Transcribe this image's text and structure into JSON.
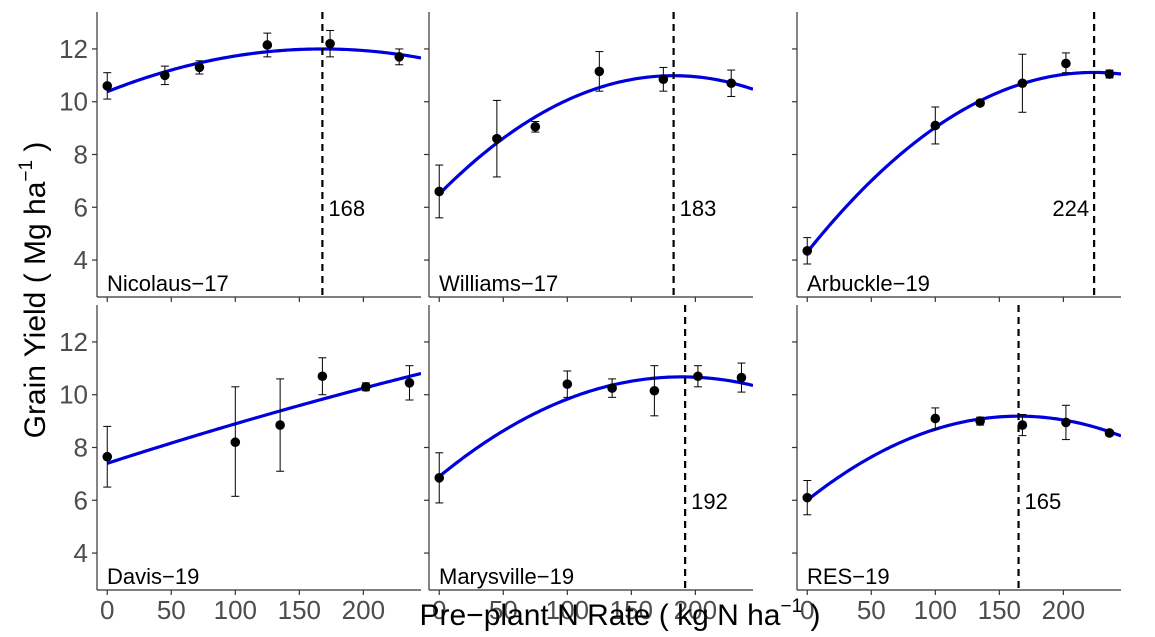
{
  "chart_data": {
    "type": "scatter",
    "layout": "facet-grid 2x3",
    "xlabel": {
      "main": "Pre−plant N Rate ( kg N ha",
      "sup": "−1",
      "tail": " )"
    },
    "ylabel": {
      "main": "Grain Yield ( Mg ha",
      "sup": "−1",
      "tail": " )"
    },
    "xlim": [
      -8,
      245
    ],
    "ylim": [
      2.6,
      13.4
    ],
    "x_ticks": [
      0,
      50,
      100,
      150,
      200
    ],
    "y_ticks": [
      4,
      6,
      8,
      10,
      12
    ],
    "grid": false,
    "colors": {
      "fit": "#0000dd",
      "points": "#000000",
      "optimum_line": "#000000",
      "axis": "#333333"
    },
    "panels": [
      {
        "name": "Nicolaus−17",
        "optimum_label": "168",
        "optimum_x": 168,
        "points": [
          {
            "x": 0,
            "y": 10.6,
            "lo": 10.1,
            "hi": 11.1
          },
          {
            "x": 45,
            "y": 11.0,
            "lo": 10.65,
            "hi": 11.35
          },
          {
            "x": 72,
            "y": 11.3,
            "lo": 11.05,
            "hi": 11.55
          },
          {
            "x": 125,
            "y": 12.15,
            "lo": 11.7,
            "hi": 12.6
          },
          {
            "x": 174,
            "y": 12.2,
            "lo": 11.7,
            "hi": 12.7
          },
          {
            "x": 228,
            "y": 11.7,
            "lo": 11.4,
            "hi": 12.0
          }
        ],
        "fit": {
          "a": 10.38,
          "b": 0.01928,
          "c": -5.74e-05
        }
      },
      {
        "name": "Williams−17",
        "optimum_label": "183",
        "optimum_x": 183,
        "points": [
          {
            "x": 0,
            "y": 6.6,
            "lo": 5.6,
            "hi": 7.6
          },
          {
            "x": 45,
            "y": 8.6,
            "lo": 7.15,
            "hi": 10.05
          },
          {
            "x": 75,
            "y": 9.05,
            "lo": 8.85,
            "hi": 9.25
          },
          {
            "x": 125,
            "y": 11.15,
            "lo": 10.4,
            "hi": 11.9
          },
          {
            "x": 175,
            "y": 10.85,
            "lo": 10.4,
            "hi": 11.3
          },
          {
            "x": 228,
            "y": 10.7,
            "lo": 10.2,
            "hi": 11.2
          }
        ],
        "fit": {
          "a": 6.5,
          "b": 0.04902,
          "c": -0.0001339
        }
      },
      {
        "name": "Arbuckle−19",
        "optimum_label": "224",
        "optimum_x": 224,
        "points": [
          {
            "x": 0,
            "y": 4.35,
            "lo": 3.85,
            "hi": 4.85
          },
          {
            "x": 100,
            "y": 9.1,
            "lo": 8.4,
            "hi": 9.8
          },
          {
            "x": 135,
            "y": 9.95,
            "lo": 9.85,
            "hi": 10.05
          },
          {
            "x": 168,
            "y": 10.7,
            "lo": 9.6,
            "hi": 11.8
          },
          {
            "x": 202,
            "y": 11.45,
            "lo": 11.1,
            "hi": 11.85
          },
          {
            "x": 236,
            "y": 11.05,
            "lo": 10.9,
            "hi": 11.2
          }
        ],
        "fit": {
          "a": 4.3,
          "b": 0.06082,
          "c": -0.0001358
        }
      },
      {
        "name": "Davis−19",
        "optimum_label": "",
        "optimum_x": null,
        "points": [
          {
            "x": 0,
            "y": 7.65,
            "lo": 6.5,
            "hi": 8.8
          },
          {
            "x": 100,
            "y": 8.2,
            "lo": 6.15,
            "hi": 10.3
          },
          {
            "x": 135,
            "y": 8.85,
            "lo": 7.1,
            "hi": 10.6
          },
          {
            "x": 168,
            "y": 10.7,
            "lo": 10.0,
            "hi": 11.4
          },
          {
            "x": 202,
            "y": 10.3,
            "lo": 10.15,
            "hi": 10.45
          },
          {
            "x": 236,
            "y": 10.45,
            "lo": 9.8,
            "hi": 11.1
          }
        ],
        "fit": {
          "a": 7.4,
          "b": 0.01571,
          "c": -7.4e-06
        }
      },
      {
        "name": "Marysville−19",
        "optimum_label": "192",
        "optimum_x": 192,
        "points": [
          {
            "x": 0,
            "y": 6.85,
            "lo": 5.9,
            "hi": 7.8
          },
          {
            "x": 100,
            "y": 10.4,
            "lo": 9.9,
            "hi": 10.9
          },
          {
            "x": 135,
            "y": 10.25,
            "lo": 9.9,
            "hi": 10.6
          },
          {
            "x": 168,
            "y": 10.15,
            "lo": 9.2,
            "hi": 11.1
          },
          {
            "x": 202,
            "y": 10.7,
            "lo": 10.3,
            "hi": 11.1
          },
          {
            "x": 236,
            "y": 10.65,
            "lo": 10.1,
            "hi": 11.2
          }
        ],
        "fit": {
          "a": 6.9,
          "b": 0.03986,
          "c": -0.0001052
        }
      },
      {
        "name": "RES−19",
        "optimum_label": "165",
        "optimum_x": 165,
        "points": [
          {
            "x": 0,
            "y": 6.1,
            "lo": 5.45,
            "hi": 6.75
          },
          {
            "x": 100,
            "y": 9.1,
            "lo": 8.7,
            "hi": 9.5
          },
          {
            "x": 135,
            "y": 9.0,
            "lo": 8.85,
            "hi": 9.15
          },
          {
            "x": 168,
            "y": 8.85,
            "lo": 8.45,
            "hi": 9.25
          },
          {
            "x": 202,
            "y": 8.95,
            "lo": 8.3,
            "hi": 9.6
          },
          {
            "x": 236,
            "y": 8.55,
            "lo": 8.45,
            "hi": 8.65
          }
        ],
        "fit": {
          "a": 6.0,
          "b": 0.03862,
          "c": -0.000117
        }
      }
    ]
  }
}
